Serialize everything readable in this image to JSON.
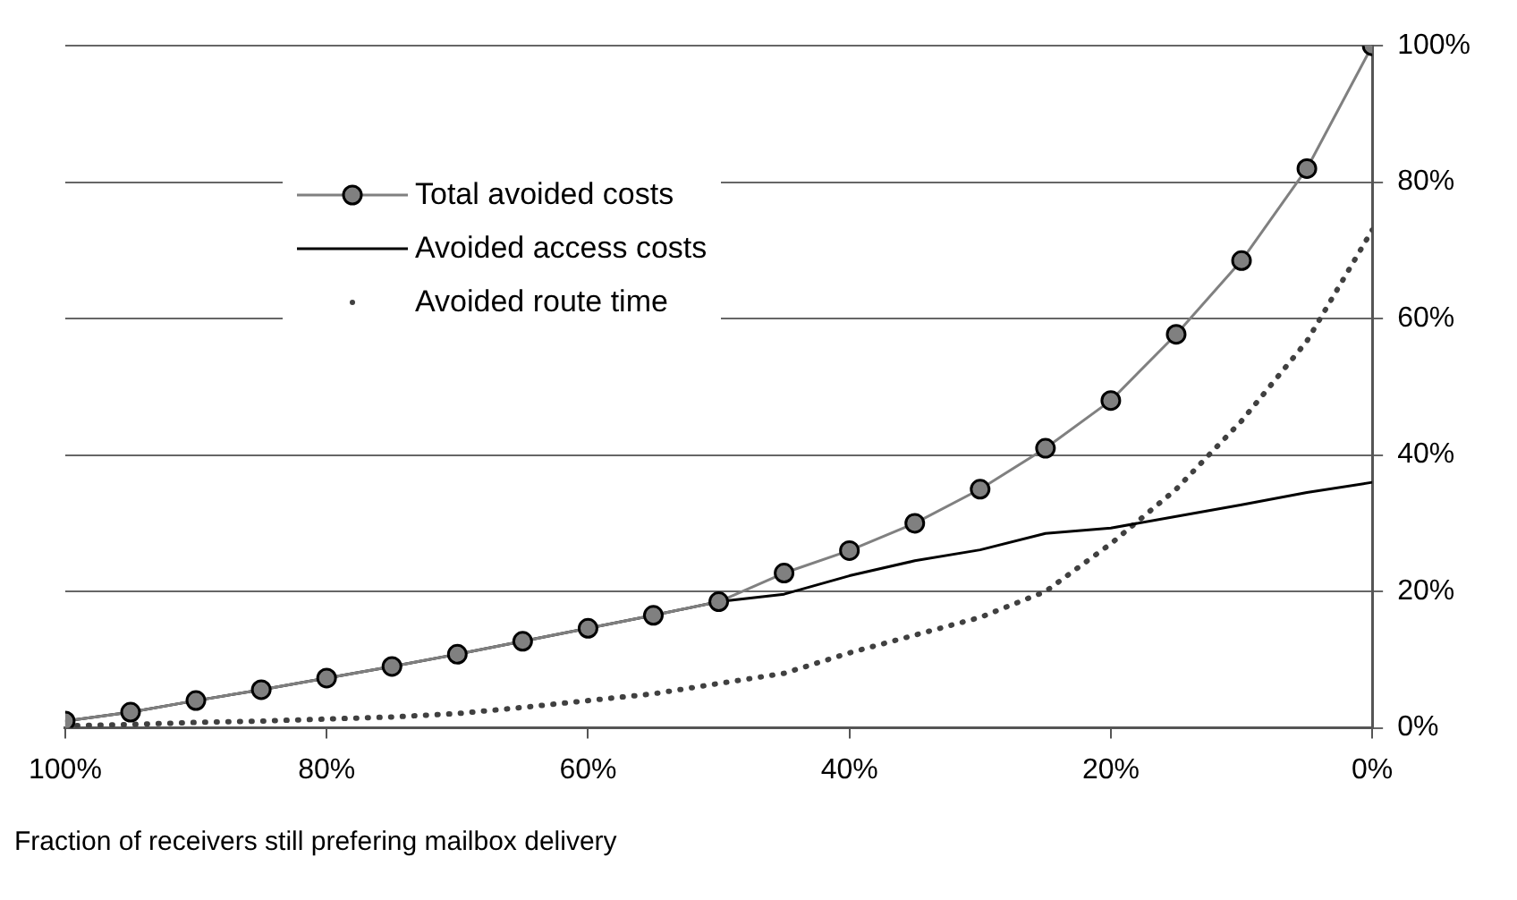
{
  "chart_data": {
    "type": "line",
    "xlabel": "Fraction of receivers still prefering mailbox delivery",
    "x": [
      100,
      95,
      90,
      85,
      80,
      75,
      70,
      65,
      60,
      55,
      50,
      45,
      40,
      35,
      30,
      25,
      20,
      15,
      10,
      5,
      0
    ],
    "series": [
      {
        "name": "Total avoided costs",
        "color": "#808080",
        "marker": "circle",
        "values": [
          1,
          2.3,
          4,
          5.6,
          7.3,
          9,
          10.8,
          12.7,
          14.6,
          16.5,
          18.5,
          22.7,
          26,
          30,
          35,
          41,
          48,
          57.7,
          68.5,
          82,
          100
        ]
      },
      {
        "name": "Avoided access costs",
        "color": "#000000",
        "marker": "none",
        "values": [
          1,
          2.3,
          4,
          5.6,
          7.3,
          9,
          10.8,
          12.7,
          14.6,
          16.5,
          18.5,
          19.6,
          22.3,
          24.5,
          26.1,
          28.5,
          29.3,
          31,
          32.7,
          34.5,
          36
        ]
      },
      {
        "name": "Avoided route time",
        "color": "#404040",
        "marker": "none",
        "line_style": "dotted",
        "values": [
          0.3,
          0.5,
          0.8,
          1,
          1.3,
          1.6,
          2.1,
          3,
          4,
          5,
          6.5,
          8,
          11,
          13.6,
          16.2,
          20,
          27,
          35,
          45,
          56.7,
          73
        ]
      }
    ],
    "xlim": [
      100,
      0
    ],
    "xticks": [
      {
        "value": 100,
        "label": "100%"
      },
      {
        "value": 80,
        "label": "80%"
      },
      {
        "value": 60,
        "label": "60%"
      },
      {
        "value": 40,
        "label": "40%"
      },
      {
        "value": 20,
        "label": "20%"
      },
      {
        "value": 0,
        "label": "0%"
      }
    ],
    "ylim": [
      0,
      100
    ],
    "yticks": [
      {
        "value": 0,
        "label": "0%"
      },
      {
        "value": 20,
        "label": "20%"
      },
      {
        "value": 40,
        "label": "40%"
      },
      {
        "value": 60,
        "label": "60%"
      },
      {
        "value": 80,
        "label": "80%"
      },
      {
        "value": 100,
        "label": "100%"
      }
    ],
    "grid": "y",
    "legend": "top left"
  }
}
